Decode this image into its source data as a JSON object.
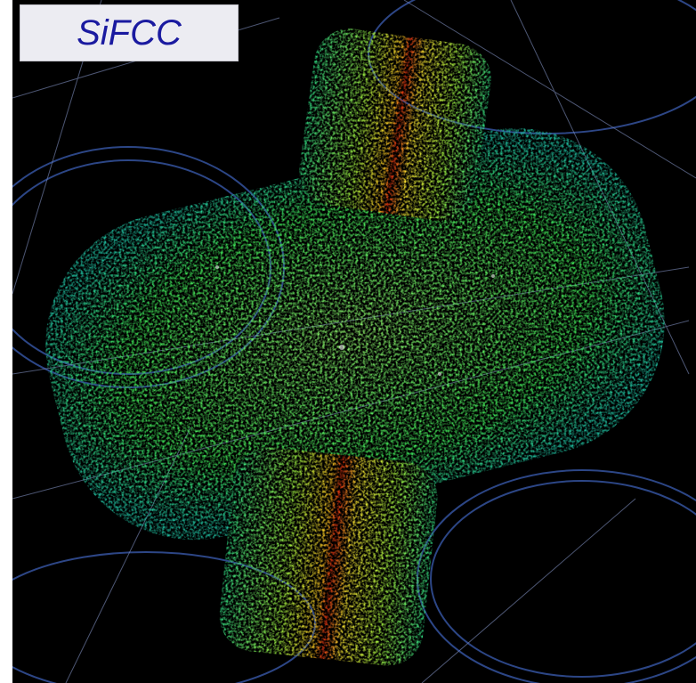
{
  "label": {
    "text": "SiFCC"
  }
}
